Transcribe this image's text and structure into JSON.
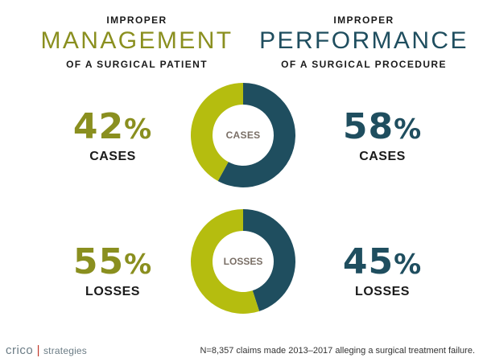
{
  "left_header": {
    "line1": "IMPROPER",
    "line2": "MANAGEMENT",
    "line3": "OF A SURGICAL PATIENT"
  },
  "right_header": {
    "line1": "IMPROPER",
    "line2": "PERFORMANCE",
    "line3": "OF A SURGICAL PROCEDURE"
  },
  "colors": {
    "management": "#b5bd0f",
    "performance": "#1f4e5f",
    "management_text": "#8a8f1f",
    "performance_text": "#1f4e5f"
  },
  "chart_data": [
    {
      "type": "pie",
      "center_label": "CASES",
      "series": [
        {
          "name": "IMPROPER MANAGEMENT",
          "value": 42,
          "display": "42",
          "metric": "CASES"
        },
        {
          "name": "IMPROPER PERFORMANCE",
          "value": 58,
          "display": "58",
          "metric": "CASES"
        }
      ]
    },
    {
      "type": "pie",
      "center_label": "LOSSES",
      "series": [
        {
          "name": "IMPROPER MANAGEMENT",
          "value": 55,
          "display": "55",
          "metric": "LOSSES"
        },
        {
          "name": "IMPROPER PERFORMANCE",
          "value": 45,
          "display": "45",
          "metric": "LOSSES"
        }
      ]
    }
  ],
  "percent_symbol": "%",
  "footer": {
    "logo_main": "crico",
    "logo_sep": "|",
    "logo_sub": "strategies",
    "note": "N=8,357 claims made 2013–2017 alleging a surgical treatment failure."
  }
}
